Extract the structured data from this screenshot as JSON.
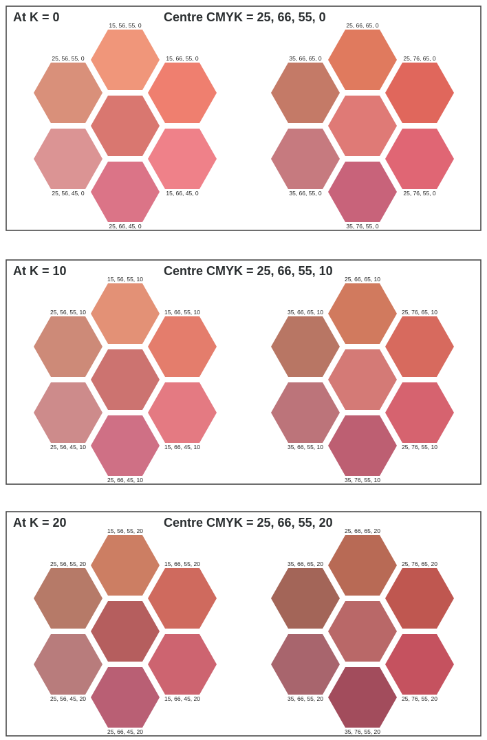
{
  "panels": [
    {
      "title": "At K = 0",
      "centre_label": "Centre CMYK = 25, 66, 55, 0",
      "clusters": [
        {
          "hexes": [
            {
              "position": "top",
              "label": "15, 56, 55, 0",
              "color": "#f0967a"
            },
            {
              "position": "upper-left",
              "label": "25, 56, 55, 0",
              "color": "#d9907a"
            },
            {
              "position": "upper-right",
              "label": "15, 66, 55, 0",
              "color": "#ef7f6f"
            },
            {
              "position": "center",
              "label": "",
              "color": "#d97770"
            },
            {
              "position": "lower-left",
              "label": "25, 56, 45, 0",
              "color": "#db9494"
            },
            {
              "position": "lower-right",
              "label": "15, 66, 45, 0",
              "color": "#ef8189"
            },
            {
              "position": "bottom",
              "label": "25, 66, 45, 0",
              "color": "#db7487"
            }
          ]
        },
        {
          "hexes": [
            {
              "position": "top",
              "label": "25, 66, 65, 0",
              "color": "#e07a5e"
            },
            {
              "position": "upper-left",
              "label": "35, 66, 65, 0",
              "color": "#c47a67"
            },
            {
              "position": "upper-right",
              "label": "25, 76, 65, 0",
              "color": "#e0675c"
            },
            {
              "position": "center",
              "label": "",
              "color": "#df7a76"
            },
            {
              "position": "lower-left",
              "label": "35, 66, 55, 0",
              "color": "#c67a7f"
            },
            {
              "position": "lower-right",
              "label": "25, 76, 55, 0",
              "color": "#e06674"
            },
            {
              "position": "bottom",
              "label": "35, 76, 55, 0",
              "color": "#c8637a"
            }
          ]
        }
      ]
    },
    {
      "title": "At K = 10",
      "centre_label": "Centre CMYK = 25, 66, 55, 10",
      "clusters": [
        {
          "hexes": [
            {
              "position": "top",
              "label": "15, 56, 55, 10",
              "color": "#e39176"
            },
            {
              "position": "upper-left",
              "label": "25, 56, 55, 10",
              "color": "#cd8a78"
            },
            {
              "position": "upper-right",
              "label": "15, 66, 55, 10",
              "color": "#e47d6c"
            },
            {
              "position": "center",
              "label": "",
              "color": "#cc7370"
            },
            {
              "position": "lower-left",
              "label": "25, 56, 45, 10",
              "color": "#cd8b8b"
            },
            {
              "position": "lower-right",
              "label": "15, 66, 45, 10",
              "color": "#e47a82"
            },
            {
              "position": "bottom",
              "label": "25, 66, 45, 10",
              "color": "#cf7085"
            }
          ]
        },
        {
          "hexes": [
            {
              "position": "top",
              "label": "25, 66, 65, 10",
              "color": "#d17a5e"
            },
            {
              "position": "upper-left",
              "label": "35, 66, 65, 10",
              "color": "#b87664"
            },
            {
              "position": "upper-right",
              "label": "25, 76, 65, 10",
              "color": "#d76a5e"
            },
            {
              "position": "center",
              "label": "",
              "color": "#d47a76"
            },
            {
              "position": "lower-left",
              "label": "35, 66, 55, 10",
              "color": "#bc747a"
            },
            {
              "position": "lower-right",
              "label": "25, 76, 55, 10",
              "color": "#d6636f"
            },
            {
              "position": "bottom",
              "label": "35, 76, 55, 10",
              "color": "#bd5f72"
            }
          ]
        }
      ]
    },
    {
      "title": "At K = 20",
      "centre_label": "Centre CMYK = 25, 66, 55, 20",
      "clusters": [
        {
          "hexes": [
            {
              "position": "top",
              "label": "15, 56, 55, 20",
              "color": "#cc7e63"
            },
            {
              "position": "upper-left",
              "label": "25, 56, 55, 20",
              "color": "#b67a68"
            },
            {
              "position": "upper-right",
              "label": "15, 66, 55, 20",
              "color": "#cf6a5e"
            },
            {
              "position": "center",
              "label": "",
              "color": "#b55e5e"
            },
            {
              "position": "lower-left",
              "label": "25, 56, 45, 20",
              "color": "#b87c7c"
            },
            {
              "position": "lower-right",
              "label": "15, 66, 45, 20",
              "color": "#cd6470"
            },
            {
              "position": "bottom",
              "label": "25, 66, 45, 20",
              "color": "#b95f74"
            }
          ]
        },
        {
          "hexes": [
            {
              "position": "top",
              "label": "25, 66, 65, 20",
              "color": "#b86a55"
            },
            {
              "position": "upper-left",
              "label": "35, 66, 65, 20",
              "color": "#a36558"
            },
            {
              "position": "upper-right",
              "label": "25, 76, 65, 20",
              "color": "#bf5750"
            },
            {
              "position": "center",
              "label": "",
              "color": "#b96868"
            },
            {
              "position": "lower-left",
              "label": "35, 66, 55, 20",
              "color": "#a8656d"
            },
            {
              "position": "lower-right",
              "label": "25, 76, 55, 20",
              "color": "#c5525f"
            },
            {
              "position": "bottom",
              "label": "35, 76, 55, 20",
              "color": "#a24c5c"
            }
          ]
        }
      ]
    }
  ]
}
